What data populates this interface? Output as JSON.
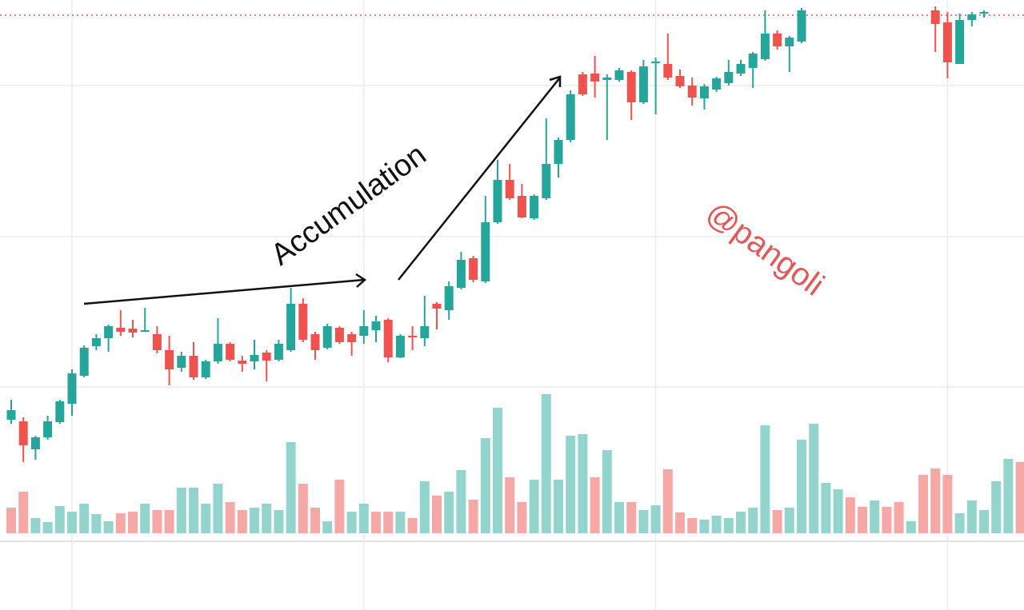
{
  "chart_data": {
    "type": "candlestick",
    "annotation": "Accumulation",
    "watermark": "@pangoli",
    "up_color": "#26a69a",
    "down_color": "#ef5350",
    "volume_up_color": "#93d4cd",
    "volume_down_color": "#f5a8a6",
    "watermark_color": "#e05a5a",
    "ylim": [
      0,
      763
    ],
    "yticks": [
      279,
      467,
      656
    ],
    "grid": true,
    "xgrid": [
      5,
      29,
      53,
      77
    ],
    "price_line": 744,
    "price_line_color": "#ef5350",
    "volume_ylim": [
      0,
      667
    ],
    "open": [
      238,
      236,
      201,
      216,
      235,
      258,
      293,
      330,
      340,
      353,
      352,
      348,
      345,
      325,
      303,
      318,
      291,
      311,
      333,
      312,
      311,
      322,
      313,
      325,
      383,
      345,
      328,
      353,
      345,
      343,
      350,
      363,
      316,
      343,
      340,
      383,
      375,
      403,
      440,
      411,
      485,
      538,
      518,
      490,
      515,
      558,
      588,
      670,
      671,
      663,
      663,
      673,
      635,
      684,
      683,
      668,
      656,
      640,
      651,
      659,
      671,
      678,
      689,
      721,
      705,
      711,
      null,
      null,
      null,
      null,
      null,
      null,
      null,
      null,
      null,
      null,
      750,
      735,
      683,
      738,
      746,
      null,
      null,
      null
    ],
    "high": [
      263,
      241,
      218,
      243,
      263,
      301,
      331,
      345,
      357,
      375,
      363,
      378,
      355,
      343,
      323,
      335,
      313,
      365,
      335,
      318,
      338,
      325,
      338,
      403,
      390,
      348,
      358,
      355,
      348,
      375,
      368,
      365,
      345,
      355,
      393,
      385,
      411,
      448,
      443,
      518,
      563,
      558,
      533,
      520,
      615,
      591,
      650,
      673,
      693,
      670,
      678,
      675,
      688,
      691,
      721,
      676,
      666,
      658,
      667,
      688,
      688,
      698,
      750,
      725,
      718,
      753,
      null,
      null,
      null,
      null,
      null,
      null,
      null,
      null,
      null,
      null,
      755,
      748,
      746,
      748,
      750,
      null,
      null,
      null
    ],
    "low": [
      233,
      185,
      188,
      213,
      233,
      243,
      291,
      325,
      323,
      343,
      341,
      348,
      321,
      281,
      298,
      288,
      289,
      308,
      311,
      298,
      301,
      286,
      311,
      323,
      335,
      313,
      326,
      333,
      318,
      333,
      335,
      310,
      315,
      325,
      330,
      351,
      363,
      401,
      410,
      409,
      483,
      513,
      490,
      488,
      513,
      541,
      585,
      643,
      641,
      588,
      661,
      613,
      633,
      620,
      663,
      653,
      631,
      626,
      648,
      656,
      668,
      653,
      687,
      701,
      673,
      709,
      null,
      null,
      null,
      null,
      null,
      null,
      null,
      null,
      null,
      null,
      698,
      665,
      683,
      730,
      741,
      null,
      null,
      null
    ],
    "close": [
      250,
      206,
      216,
      236,
      261,
      296,
      328,
      340,
      355,
      348,
      347,
      350,
      325,
      301,
      318,
      291,
      311,
      333,
      313,
      308,
      319,
      312,
      333,
      383,
      338,
      325,
      355,
      335,
      335,
      355,
      361,
      316,
      343,
      341,
      355,
      377,
      405,
      438,
      413,
      485,
      538,
      515,
      491,
      518,
      558,
      588,
      645,
      645,
      661,
      666,
      675,
      635,
      680,
      686,
      666,
      655,
      641,
      655,
      665,
      673,
      683,
      696,
      721,
      705,
      716,
      750,
      null,
      null,
      null,
      null,
      null,
      null,
      null,
      null,
      null,
      null,
      733,
      685,
      738,
      745,
      748,
      null,
      null,
      null
    ],
    "volume_up": [
      null,
      null,
      19,
      14,
      34,
      27,
      37,
      24,
      15,
      null,
      null,
      37,
      null,
      null,
      57,
      57,
      37,
      62,
      null,
      null,
      32,
      37,
      29,
      114,
      null,
      null,
      15,
      null,
      27,
      37,
      null,
      null,
      27,
      null,
      65,
      null,
      52,
      79,
      null,
      119,
      157,
      null,
      null,
      67,
      174,
      67,
      122,
      124,
      null,
      104,
      39,
      null,
      29,
      35,
      null,
      null,
      null,
      17,
      22,
      19,
      27,
      32,
      135,
      null,
      32,
      117,
      137,
      63,
      55,
      null,
      null,
      41,
      null,
      null,
      15,
      null,
      null,
      null,
      25,
      41,
      29,
      65,
      93,
      null
    ],
    "volume_down": [
      32,
      52,
      null,
      null,
      null,
      null,
      null,
      null,
      null,
      25,
      27,
      null,
      29,
      29,
      null,
      null,
      null,
      null,
      39,
      29,
      null,
      null,
      null,
      null,
      62,
      32,
      null,
      67,
      null,
      null,
      27,
      27,
      null,
      19,
      null,
      47,
      null,
      null,
      42,
      null,
      null,
      70,
      39,
      null,
      null,
      null,
      null,
      null,
      70,
      null,
      null,
      39,
      null,
      null,
      80,
      26,
      19,
      null,
      null,
      null,
      null,
      null,
      null,
      29,
      null,
      null,
      null,
      null,
      null,
      45,
      33,
      null,
      33,
      39,
      null,
      73,
      81,
      73,
      null,
      null,
      null,
      null,
      null,
      89
    ]
  }
}
